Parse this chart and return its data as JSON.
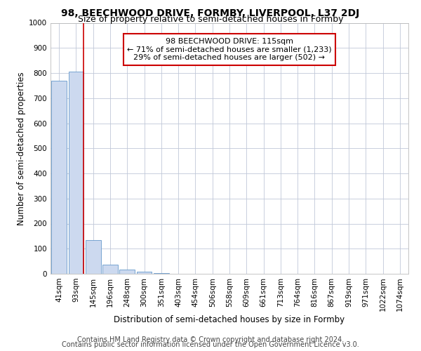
{
  "title": "98, BEECHWOOD DRIVE, FORMBY, LIVERPOOL, L37 2DJ",
  "subtitle": "Size of property relative to semi-detached houses in Formby",
  "xlabel": "Distribution of semi-detached houses by size in Formby",
  "ylabel": "Number of semi-detached properties",
  "footer_line1": "Contains HM Land Registry data © Crown copyright and database right 2024.",
  "footer_line2": "Contains public sector information licensed under the Open Government Licence v3.0.",
  "categories": [
    "41sqm",
    "93sqm",
    "145sqm",
    "196sqm",
    "248sqm",
    "300sqm",
    "351sqm",
    "403sqm",
    "454sqm",
    "506sqm",
    "558sqm",
    "609sqm",
    "661sqm",
    "713sqm",
    "764sqm",
    "816sqm",
    "867sqm",
    "919sqm",
    "971sqm",
    "1022sqm",
    "1074sqm"
  ],
  "values": [
    770,
    805,
    135,
    35,
    17,
    8,
    2,
    0,
    0,
    0,
    0,
    0,
    0,
    0,
    0,
    0,
    0,
    0,
    0,
    0,
    0
  ],
  "bar_color": "#ccd9ef",
  "bar_edge_color": "#6699cc",
  "property_line_color": "#cc0000",
  "annotation_box_color": "#ffffff",
  "annotation_box_edge": "#cc0000",
  "property_label": "98 BEECHWOOD DRIVE: 115sqm",
  "pct_smaller": 71,
  "count_smaller": 1233,
  "pct_larger": 29,
  "count_larger": 502,
  "ylim": [
    0,
    1000
  ],
  "yticks": [
    0,
    100,
    200,
    300,
    400,
    500,
    600,
    700,
    800,
    900,
    1000
  ],
  "bg_color": "#ffffff",
  "grid_color": "#c0c8d8",
  "title_fontsize": 10,
  "subtitle_fontsize": 9,
  "axis_label_fontsize": 8.5,
  "tick_fontsize": 7.5,
  "annotation_fontsize": 8,
  "footer_fontsize": 7
}
